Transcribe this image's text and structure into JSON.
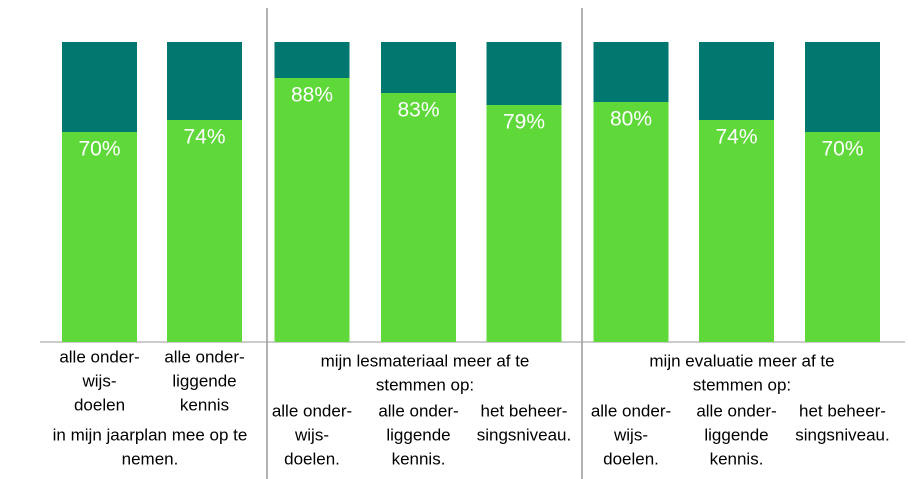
{
  "chart_data": {
    "type": "bar",
    "stacked": true,
    "ylim": [
      0,
      100
    ],
    "groups": [
      {
        "label": [
          "in mijn jaarplan mee op te",
          "nemen."
        ],
        "label_position": "below",
        "categories": [
          [
            "alle onder-",
            "wijs-",
            "doelen"
          ],
          [
            "alle onder-",
            "liggende",
            "kennis"
          ]
        ]
      },
      {
        "label": [
          "mijn lesmateriaal meer af te",
          "stemmen op:"
        ],
        "label_position": "above",
        "categories": [
          [
            "alle onder-",
            "wijs-",
            "doelen."
          ],
          [
            "alle onder-",
            "liggende",
            "kennis."
          ],
          [
            "het beheer-",
            "singsniveau."
          ]
        ]
      },
      {
        "label": [
          "mijn evaluatie meer af te",
          "stemmen op:"
        ],
        "label_position": "above",
        "categories": [
          [
            "alle onder-",
            "wijs-",
            "doelen."
          ],
          [
            "alle onder-",
            "liggende",
            "kennis."
          ],
          [
            "het beheer-",
            "singsniveau."
          ]
        ]
      }
    ],
    "series": [
      {
        "color": "#5fd93a",
        "values": [
          70,
          74,
          88,
          83,
          79,
          80,
          74,
          70
        ],
        "value_labels": [
          "70%",
          "74%",
          "88%",
          "83%",
          "79%",
          "80%",
          "74%",
          "70%"
        ]
      },
      {
        "color": "#00776f",
        "values": [
          30,
          26,
          12,
          17,
          21,
          20,
          26,
          30
        ]
      }
    ]
  }
}
